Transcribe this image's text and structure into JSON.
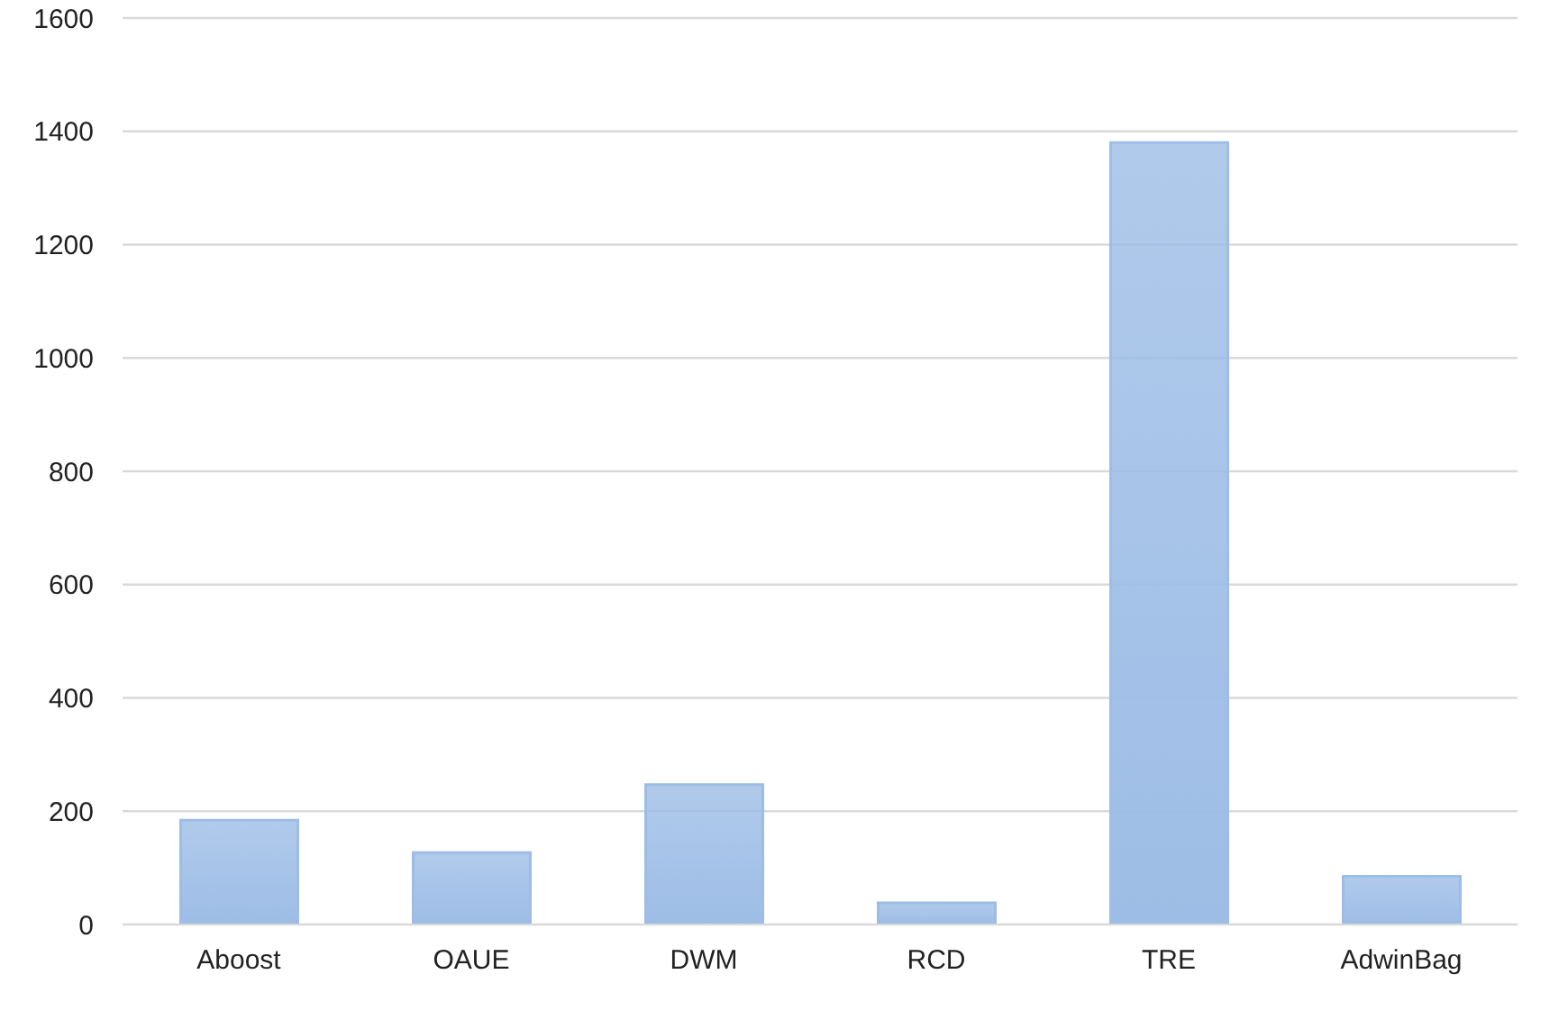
{
  "chart_data": {
    "type": "bar",
    "categories": [
      "Aboost",
      "OAUE",
      "DWM",
      "RCD",
      "TRE",
      "AdwinBag"
    ],
    "values": [
      184,
      127,
      247,
      38,
      1380,
      85
    ],
    "color": "#9dbde6",
    "ylim": [
      0,
      1600
    ],
    "yticks": [
      0,
      200,
      400,
      600,
      800,
      1000,
      1200,
      1400,
      1600
    ],
    "grid": "y"
  }
}
